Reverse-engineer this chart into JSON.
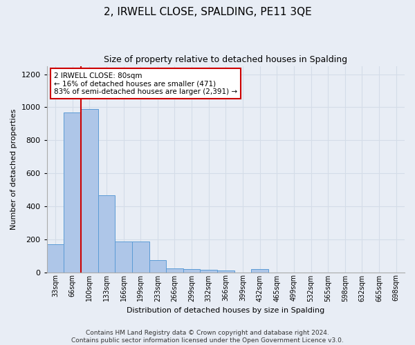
{
  "title": "2, IRWELL CLOSE, SPALDING, PE11 3QE",
  "subtitle": "Size of property relative to detached houses in Spalding",
  "xlabel": "Distribution of detached houses by size in Spalding",
  "ylabel": "Number of detached properties",
  "footer_line1": "Contains HM Land Registry data © Crown copyright and database right 2024.",
  "footer_line2": "Contains public sector information licensed under the Open Government Licence v3.0.",
  "categories": [
    "33sqm",
    "66sqm",
    "100sqm",
    "133sqm",
    "166sqm",
    "199sqm",
    "233sqm",
    "266sqm",
    "299sqm",
    "332sqm",
    "366sqm",
    "399sqm",
    "432sqm",
    "465sqm",
    "499sqm",
    "532sqm",
    "565sqm",
    "598sqm",
    "632sqm",
    "665sqm",
    "698sqm"
  ],
  "values": [
    170,
    970,
    990,
    465,
    185,
    185,
    75,
    25,
    20,
    15,
    10,
    0,
    20,
    0,
    0,
    0,
    0,
    0,
    0,
    0,
    0
  ],
  "bar_color": "#aec6e8",
  "bar_edge_color": "#5b9bd5",
  "highlight_color": "#cc0000",
  "annotation_text": "2 IRWELL CLOSE: 80sqm\n← 16% of detached houses are smaller (471)\n83% of semi-detached houses are larger (2,391) →",
  "annotation_box_color": "#ffffff",
  "annotation_box_edge_color": "#cc0000",
  "ylim": [
    0,
    1250
  ],
  "yticks": [
    0,
    200,
    400,
    600,
    800,
    1000,
    1200
  ],
  "grid_color": "#d4dce8",
  "background_color": "#e8edf5",
  "plot_background": "#e8edf5",
  "title_fontsize": 11,
  "subtitle_fontsize": 9,
  "tick_fontsize": 7,
  "ylabel_fontsize": 8,
  "xlabel_fontsize": 8,
  "footer_fontsize": 6.5,
  "annotation_fontsize": 7.5,
  "highlight_bar_index": 1.5
}
